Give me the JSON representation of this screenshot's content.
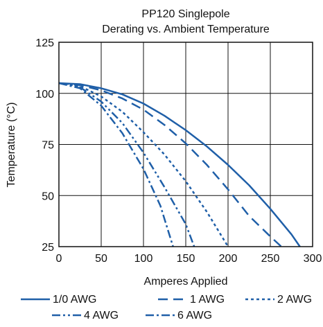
{
  "chart_data": {
    "type": "line",
    "title": "PP120 Singlepole",
    "subtitle": "Derating vs. Ambient Temperature",
    "xlabel": "Amperes Applied",
    "ylabel": "Temperature (°C)",
    "xlim": [
      0,
      300
    ],
    "ylim": [
      25,
      125
    ],
    "xticks": [
      0,
      50,
      100,
      150,
      200,
      250,
      300
    ],
    "yticks": [
      25,
      50,
      75,
      100,
      125
    ],
    "grid": true,
    "legend_position": "bottom",
    "color": "#1f5fa8",
    "series": [
      {
        "name": "1/0 AWG",
        "dash": "solid",
        "x": [
          0,
          25,
          50,
          75,
          100,
          125,
          150,
          175,
          200,
          225,
          250,
          275,
          285
        ],
        "y": [
          105,
          104.5,
          102.5,
          99.5,
          95,
          89,
          82,
          74,
          65,
          55,
          43.5,
          31,
          25
        ]
      },
      {
        "name": "1 AWG",
        "dash": "dash",
        "x": [
          0,
          25,
          50,
          75,
          100,
          125,
          150,
          175,
          200,
          225,
          250,
          263
        ],
        "y": [
          105,
          104,
          101.5,
          97.5,
          92,
          84.5,
          75.5,
          65,
          53,
          40,
          30,
          25
        ]
      },
      {
        "name": "2 AWG",
        "dash": "dot",
        "x": [
          0,
          25,
          50,
          75,
          100,
          125,
          150,
          175,
          200
        ],
        "y": [
          105,
          103.5,
          98.5,
          91,
          81,
          70,
          57,
          42,
          25
        ]
      },
      {
        "name": "4 AWG",
        "dash": "dashdotdot",
        "x": [
          0,
          25,
          50,
          75,
          100,
          125,
          150,
          160
        ],
        "y": [
          105,
          103,
          96,
          85.5,
          71,
          54,
          36,
          25
        ]
      },
      {
        "name": "6 AWG",
        "dash": "dashdot",
        "x": [
          0,
          25,
          50,
          75,
          100,
          120,
          135
        ],
        "y": [
          105,
          102.5,
          94,
          80.5,
          63,
          45,
          25
        ]
      }
    ]
  }
}
